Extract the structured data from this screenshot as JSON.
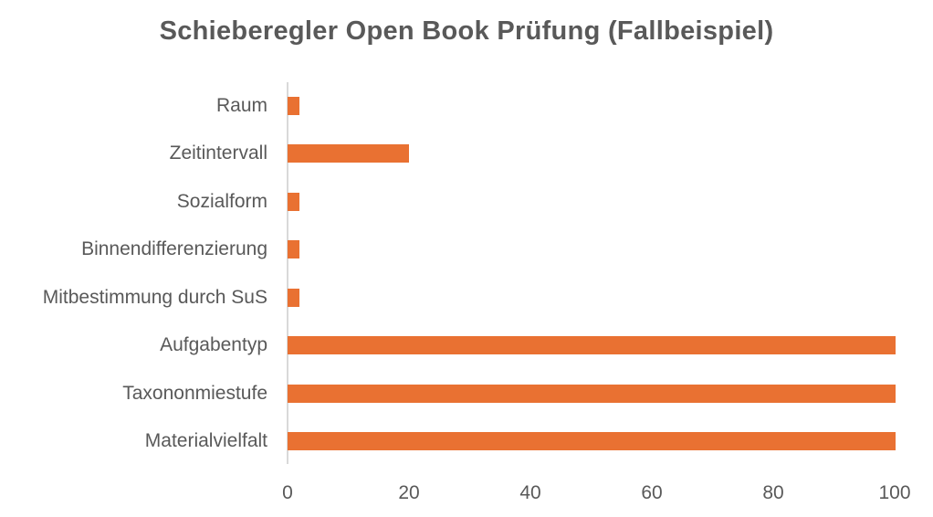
{
  "chart_data": {
    "type": "bar",
    "orientation": "horizontal",
    "title": "Schieberegler Open Book Prüfung (Fallbeispiel)",
    "xlabel": "",
    "ylabel": "",
    "categories": [
      "Raum",
      "Zeitintervall",
      "Sozialform",
      "Binnendifferenzierung",
      "Mitbestimmung durch SuS",
      "Aufgabentyp",
      "Taxononmiestufe",
      "Materialvielfalt"
    ],
    "values": [
      2,
      20,
      2,
      2,
      2,
      100,
      100,
      100
    ],
    "xlim": [
      0,
      100
    ],
    "xticks": [
      "0",
      "20",
      "40",
      "60",
      "80",
      "100"
    ],
    "grid": false,
    "legend": null,
    "bar_color": "#e97132"
  },
  "title": "Schieberegler Open Book Prüfung (Fallbeispiel)",
  "categories": [
    "Raum",
    "Zeitintervall",
    "Sozialform",
    "Binnendifferenzierung",
    "Mitbestimmung durch SuS",
    "Aufgabentyp",
    "Taxononmiestufe",
    "Materialvielfalt"
  ],
  "ticks": [
    "0",
    "20",
    "40",
    "60",
    "80",
    "100"
  ]
}
